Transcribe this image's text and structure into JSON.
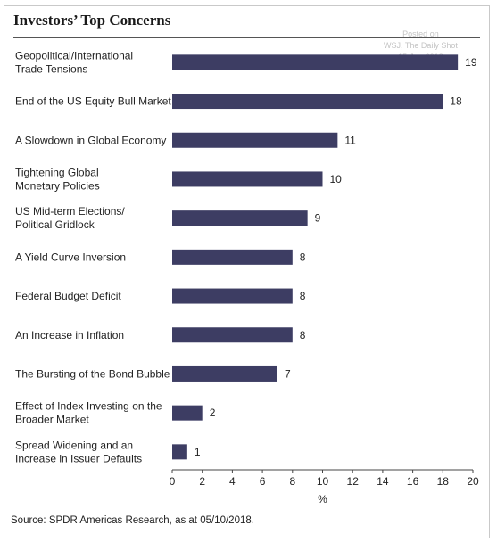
{
  "title": "Investors’ Top Concerns",
  "watermark": [
    "Posted on",
    "WSJ, The Daily Shot",
    "15-Jun-2018"
  ],
  "source": "Source: SPDR Americas Research, as at 05/10/2018.",
  "colors": {
    "bar": "#3d3d63",
    "axis": "#444444",
    "title_rule": "#555555"
  },
  "chart_data": {
    "type": "bar",
    "orientation": "horizontal",
    "title": "Investors’ Top Concerns",
    "xlabel": "%",
    "ylabel": "",
    "xlim": [
      0,
      20
    ],
    "xticks": [
      0,
      2,
      4,
      6,
      8,
      10,
      12,
      14,
      16,
      18,
      20
    ],
    "grid": false,
    "categories": [
      [
        "Geopolitical/International",
        "Trade Tensions"
      ],
      [
        "End of the US Equity Bull Market"
      ],
      [
        "A Slowdown in Global Economy"
      ],
      [
        "Tightening Global",
        "Monetary Policies"
      ],
      [
        "US Mid-term Elections/",
        "Political Gridlock"
      ],
      [
        "A Yield Curve Inversion"
      ],
      [
        "Federal Budget Deficit"
      ],
      [
        "An Increase in Inflation"
      ],
      [
        "The Bursting of the Bond Bubble"
      ],
      [
        "Effect of Index Investing on the",
        "Broader Market"
      ],
      [
        "Spread Widening and an",
        "Increase in Issuer Defaults"
      ]
    ],
    "values": [
      19,
      18,
      11,
      10,
      9,
      8,
      8,
      8,
      7,
      2,
      1
    ]
  }
}
